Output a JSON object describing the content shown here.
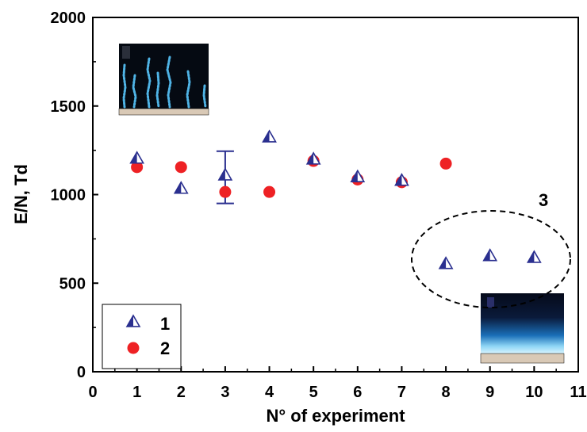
{
  "chart_data": {
    "type": "scatter",
    "xlabel": "N° of experiment",
    "ylabel": "E/N, Td",
    "xlim": [
      0,
      11
    ],
    "ylim": [
      0,
      2000
    ],
    "x_ticks": [
      0,
      1,
      2,
      3,
      4,
      5,
      6,
      7,
      8,
      9,
      10,
      11
    ],
    "y_ticks": [
      0,
      500,
      1000,
      1500,
      2000
    ],
    "grid": false,
    "legend_position": "bottom-left",
    "series": [
      {
        "name": "1",
        "marker": "half-filled-triangle",
        "color": "#2a2f8f",
        "points": [
          {
            "x": 1,
            "y": 1200
          },
          {
            "x": 2,
            "y": 1030
          },
          {
            "x": 3,
            "y": 1105,
            "err_low": 950,
            "err_high": 1245
          },
          {
            "x": 4,
            "y": 1320
          },
          {
            "x": 5,
            "y": 1195
          },
          {
            "x": 6,
            "y": 1095
          },
          {
            "x": 7,
            "y": 1075
          },
          {
            "x": 8,
            "y": 605
          },
          {
            "x": 9,
            "y": 650
          },
          {
            "x": 10,
            "y": 640
          }
        ]
      },
      {
        "name": "2",
        "marker": "filled-circle",
        "color": "#ee2124",
        "points": [
          {
            "x": 1,
            "y": 1155
          },
          {
            "x": 2,
            "y": 1155
          },
          {
            "x": 3,
            "y": 1015
          },
          {
            "x": 4,
            "y": 1015
          },
          {
            "x": 5,
            "y": 1190
          },
          {
            "x": 6,
            "y": 1085
          },
          {
            "x": 7,
            "y": 1070
          },
          {
            "x": 8,
            "y": 1175
          }
        ]
      }
    ],
    "annotations": [
      {
        "text": "3",
        "shape": "dashed-ellipse",
        "encloses_x": [
          8,
          9,
          10
        ]
      }
    ],
    "insets": [
      {
        "name": "inset-filamentary-discharge",
        "position": "top-left"
      },
      {
        "name": "inset-diffuse-discharge",
        "position": "bottom-right"
      }
    ]
  }
}
